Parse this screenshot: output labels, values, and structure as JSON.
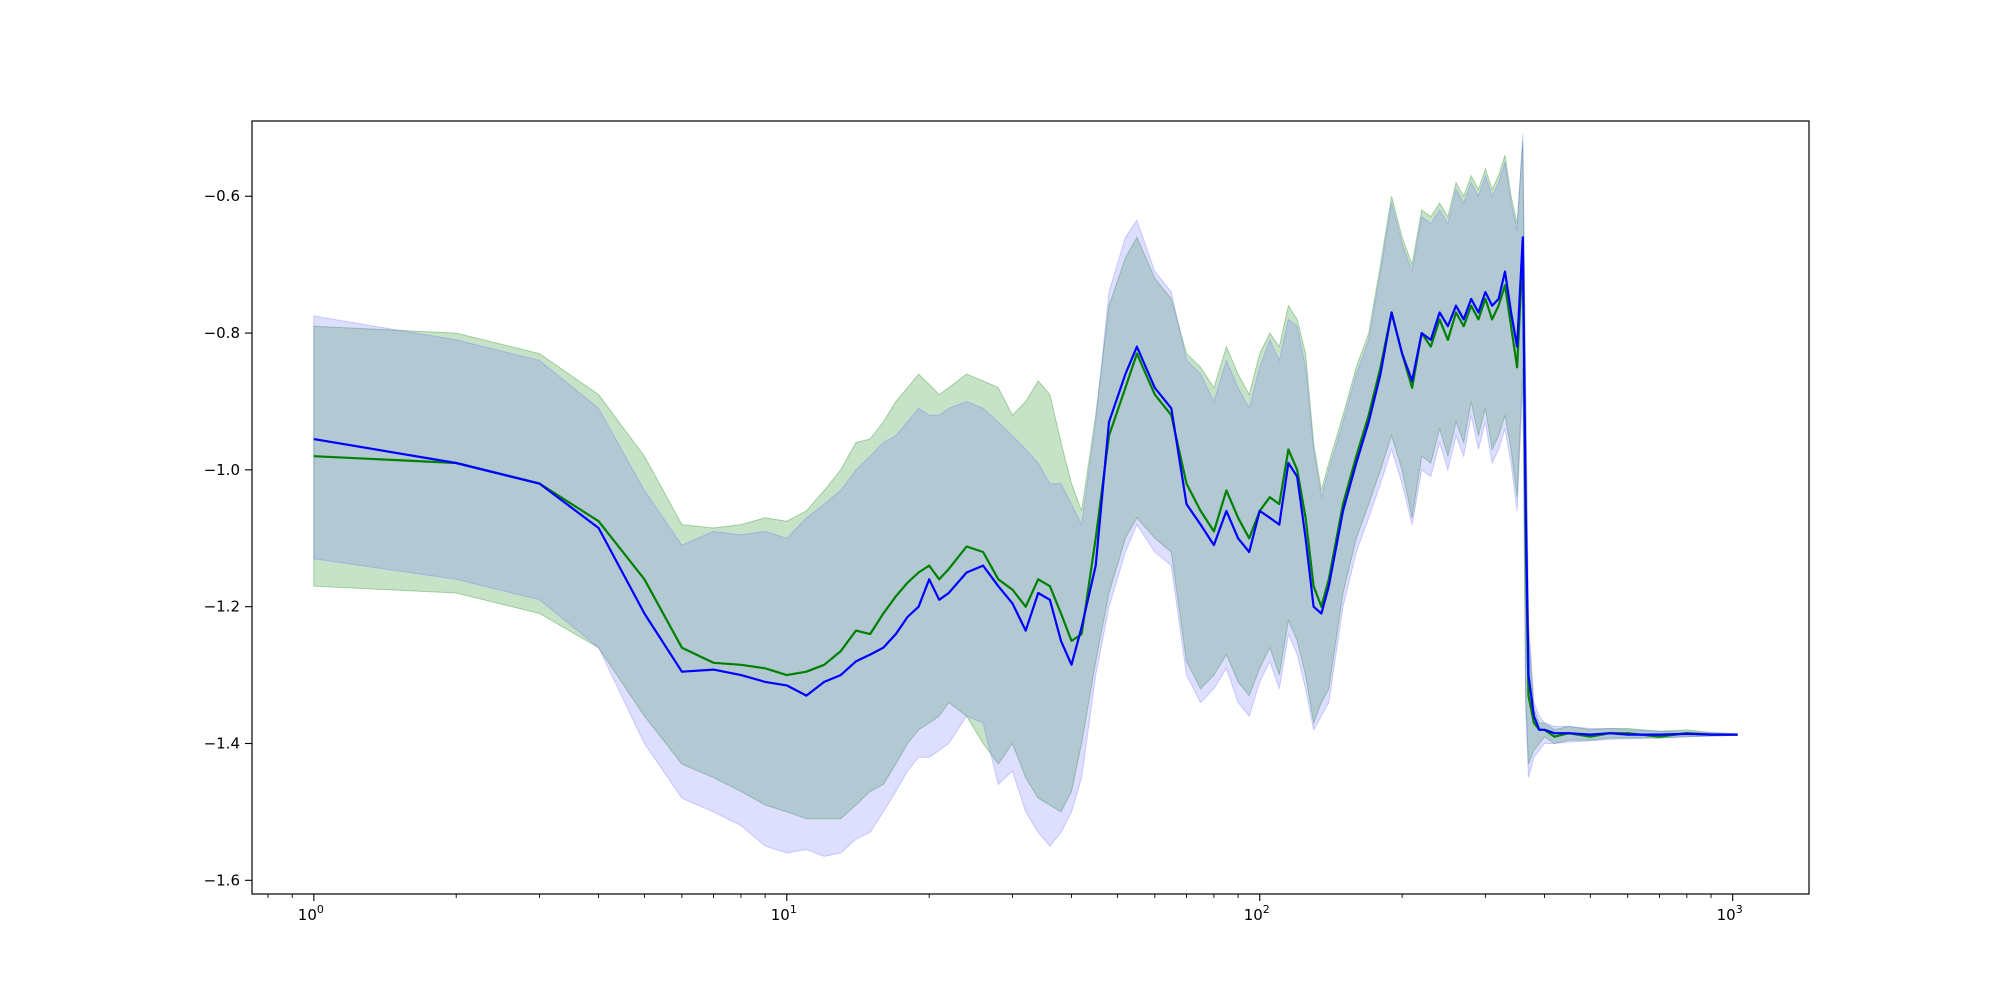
{
  "chart_data": {
    "type": "line",
    "title": "",
    "xlabel": "",
    "ylabel": "",
    "xscale": "log",
    "xlim": [
      0.74,
      1450
    ],
    "ylim": [
      -1.62,
      -0.49
    ],
    "grid": false,
    "legend": "none",
    "x_ticks": [
      {
        "value": 1,
        "base": "10",
        "exp": "0"
      },
      {
        "value": 10,
        "base": "10",
        "exp": "1"
      },
      {
        "value": 100,
        "base": "10",
        "exp": "2"
      },
      {
        "value": 1000,
        "base": "10",
        "exp": "3"
      }
    ],
    "y_ticks": [
      {
        "value": -0.6,
        "label": "−0.6"
      },
      {
        "value": -0.8,
        "label": "−0.8"
      },
      {
        "value": -1.0,
        "label": "−1.0"
      },
      {
        "value": -1.2,
        "label": "−1.2"
      },
      {
        "value": -1.4,
        "label": "−1.4"
      },
      {
        "value": -1.6,
        "label": "−1.6"
      }
    ],
    "series": [
      {
        "color": "#008000",
        "band_color": "#008000",
        "x": [
          1,
          2,
          3,
          4,
          5,
          6,
          7,
          8,
          9,
          10,
          11,
          12,
          13,
          14,
          15,
          16,
          17,
          18,
          19,
          20,
          21,
          22,
          24,
          26,
          28,
          30,
          32,
          34,
          36,
          38,
          40,
          42,
          45,
          48,
          52,
          55,
          60,
          65,
          70,
          75,
          80,
          85,
          90,
          95,
          100,
          105,
          110,
          115,
          120,
          125,
          130,
          135,
          140,
          150,
          160,
          170,
          180,
          190,
          200,
          210,
          220,
          230,
          240,
          250,
          260,
          270,
          280,
          290,
          300,
          310,
          320,
          330,
          340,
          350,
          360,
          365,
          370,
          380,
          390,
          400,
          420,
          450,
          500,
          550,
          600,
          700,
          800,
          900,
          1024
        ],
        "mean": [
          -0.98,
          -0.99,
          -1.02,
          -1.075,
          -1.16,
          -1.26,
          -1.282,
          -1.285,
          -1.29,
          -1.3,
          -1.295,
          -1.285,
          -1.265,
          -1.235,
          -1.24,
          -1.21,
          -1.185,
          -1.165,
          -1.15,
          -1.14,
          -1.16,
          -1.145,
          -1.112,
          -1.12,
          -1.16,
          -1.175,
          -1.2,
          -1.16,
          -1.17,
          -1.21,
          -1.25,
          -1.24,
          -1.1,
          -0.95,
          -0.88,
          -0.83,
          -0.89,
          -0.92,
          -1.02,
          -1.06,
          -1.09,
          -1.03,
          -1.07,
          -1.1,
          -1.06,
          -1.04,
          -1.05,
          -0.97,
          -1.0,
          -1.07,
          -1.17,
          -1.2,
          -1.16,
          -1.05,
          -0.98,
          -0.92,
          -0.85,
          -0.77,
          -0.83,
          -0.88,
          -0.8,
          -0.82,
          -0.78,
          -0.81,
          -0.77,
          -0.79,
          -0.76,
          -0.78,
          -0.75,
          -0.78,
          -0.76,
          -0.73,
          -0.79,
          -0.85,
          -0.68,
          -1.1,
          -1.33,
          -1.37,
          -1.38,
          -1.38,
          -1.39,
          -1.385,
          -1.39,
          -1.385,
          -1.385,
          -1.39,
          -1.385,
          -1.387,
          -1.387
        ],
        "lower": [
          -1.17,
          -1.18,
          -1.21,
          -1.26,
          -1.36,
          -1.43,
          -1.45,
          -1.47,
          -1.49,
          -1.5,
          -1.51,
          -1.51,
          -1.51,
          -1.49,
          -1.47,
          -1.46,
          -1.43,
          -1.4,
          -1.38,
          -1.37,
          -1.36,
          -1.34,
          -1.36,
          -1.4,
          -1.43,
          -1.4,
          -1.45,
          -1.48,
          -1.49,
          -1.5,
          -1.47,
          -1.4,
          -1.28,
          -1.18,
          -1.1,
          -1.07,
          -1.1,
          -1.12,
          -1.28,
          -1.32,
          -1.3,
          -1.27,
          -1.31,
          -1.33,
          -1.29,
          -1.26,
          -1.3,
          -1.22,
          -1.25,
          -1.3,
          -1.37,
          -1.34,
          -1.32,
          -1.18,
          -1.1,
          -1.05,
          -1.0,
          -0.95,
          -1.0,
          -1.07,
          -0.98,
          -0.99,
          -0.94,
          -0.98,
          -0.93,
          -0.96,
          -0.9,
          -0.95,
          -0.91,
          -0.97,
          -0.95,
          -0.92,
          -0.97,
          -1.04,
          -0.85,
          -1.33,
          -1.43,
          -1.41,
          -1.4,
          -1.39,
          -1.4,
          -1.395,
          -1.395,
          -1.392,
          -1.392,
          -1.392,
          -1.39,
          -1.389,
          -1.388
        ],
        "upper": [
          -0.79,
          -0.8,
          -0.83,
          -0.89,
          -0.98,
          -1.08,
          -1.085,
          -1.08,
          -1.07,
          -1.075,
          -1.06,
          -1.03,
          -1.0,
          -0.96,
          -0.955,
          -0.93,
          -0.9,
          -0.88,
          -0.86,
          -0.875,
          -0.89,
          -0.88,
          -0.86,
          -0.87,
          -0.88,
          -0.92,
          -0.9,
          -0.87,
          -0.89,
          -0.96,
          -1.02,
          -1.06,
          -0.92,
          -0.76,
          -0.69,
          -0.66,
          -0.72,
          -0.75,
          -0.83,
          -0.85,
          -0.88,
          -0.82,
          -0.86,
          -0.89,
          -0.83,
          -0.8,
          -0.82,
          -0.76,
          -0.78,
          -0.83,
          -0.96,
          -1.03,
          -0.99,
          -0.92,
          -0.85,
          -0.8,
          -0.7,
          -0.6,
          -0.66,
          -0.7,
          -0.62,
          -0.63,
          -0.61,
          -0.63,
          -0.58,
          -0.6,
          -0.57,
          -0.59,
          -0.56,
          -0.59,
          -0.57,
          -0.54,
          -0.6,
          -0.64,
          -0.52,
          -0.9,
          -1.24,
          -1.35,
          -1.37,
          -1.37,
          -1.38,
          -1.375,
          -1.38,
          -1.378,
          -1.378,
          -1.382,
          -1.38,
          -1.384,
          -1.386
        ]
      },
      {
        "color": "#0000ff",
        "band_color": "#6a6aff",
        "x": [
          1,
          2,
          3,
          4,
          5,
          6,
          7,
          8,
          9,
          10,
          11,
          12,
          13,
          14,
          15,
          16,
          17,
          18,
          19,
          20,
          21,
          22,
          24,
          26,
          28,
          30,
          32,
          34,
          36,
          38,
          40,
          42,
          45,
          48,
          52,
          55,
          60,
          65,
          70,
          75,
          80,
          85,
          90,
          95,
          100,
          105,
          110,
          115,
          120,
          125,
          130,
          135,
          140,
          150,
          160,
          170,
          180,
          190,
          200,
          210,
          220,
          230,
          240,
          250,
          260,
          270,
          280,
          290,
          300,
          310,
          320,
          330,
          340,
          350,
          360,
          365,
          370,
          380,
          390,
          400,
          420,
          450,
          500,
          550,
          600,
          700,
          800,
          900,
          1024
        ],
        "mean": [
          -0.955,
          -0.99,
          -1.02,
          -1.085,
          -1.21,
          -1.295,
          -1.292,
          -1.3,
          -1.31,
          -1.315,
          -1.33,
          -1.31,
          -1.3,
          -1.28,
          -1.27,
          -1.26,
          -1.24,
          -1.215,
          -1.2,
          -1.16,
          -1.19,
          -1.18,
          -1.15,
          -1.14,
          -1.17,
          -1.195,
          -1.235,
          -1.18,
          -1.19,
          -1.25,
          -1.285,
          -1.23,
          -1.14,
          -0.93,
          -0.86,
          -0.82,
          -0.88,
          -0.91,
          -1.05,
          -1.08,
          -1.11,
          -1.06,
          -1.1,
          -1.12,
          -1.06,
          -1.07,
          -1.08,
          -0.99,
          -1.01,
          -1.1,
          -1.2,
          -1.21,
          -1.17,
          -1.06,
          -0.99,
          -0.93,
          -0.86,
          -0.77,
          -0.83,
          -0.87,
          -0.8,
          -0.81,
          -0.77,
          -0.79,
          -0.76,
          -0.78,
          -0.75,
          -0.77,
          -0.74,
          -0.76,
          -0.75,
          -0.71,
          -0.77,
          -0.82,
          -0.66,
          -1.05,
          -1.3,
          -1.36,
          -1.38,
          -1.38,
          -1.385,
          -1.385,
          -1.387,
          -1.385,
          -1.387,
          -1.387,
          -1.386,
          -1.387,
          -1.387
        ],
        "lower": [
          -1.13,
          -1.16,
          -1.19,
          -1.26,
          -1.4,
          -1.48,
          -1.5,
          -1.52,
          -1.55,
          -1.56,
          -1.555,
          -1.565,
          -1.56,
          -1.54,
          -1.53,
          -1.5,
          -1.47,
          -1.44,
          -1.42,
          -1.42,
          -1.41,
          -1.4,
          -1.36,
          -1.37,
          -1.46,
          -1.44,
          -1.5,
          -1.53,
          -1.55,
          -1.53,
          -1.5,
          -1.45,
          -1.3,
          -1.2,
          -1.12,
          -1.08,
          -1.12,
          -1.14,
          -1.3,
          -1.34,
          -1.32,
          -1.29,
          -1.34,
          -1.36,
          -1.31,
          -1.28,
          -1.32,
          -1.24,
          -1.27,
          -1.32,
          -1.38,
          -1.36,
          -1.34,
          -1.2,
          -1.12,
          -1.07,
          -1.02,
          -0.97,
          -1.02,
          -1.08,
          -1.0,
          -1.01,
          -0.96,
          -1.0,
          -0.95,
          -0.98,
          -0.92,
          -0.97,
          -0.93,
          -0.99,
          -0.97,
          -0.94,
          -0.99,
          -1.06,
          -0.87,
          -1.35,
          -1.45,
          -1.42,
          -1.41,
          -1.4,
          -1.4,
          -1.398,
          -1.396,
          -1.394,
          -1.393,
          -1.392,
          -1.39,
          -1.389,
          -1.388
        ],
        "upper": [
          -0.775,
          -0.81,
          -0.84,
          -0.91,
          -1.03,
          -1.11,
          -1.09,
          -1.095,
          -1.09,
          -1.1,
          -1.07,
          -1.05,
          -1.03,
          -1.0,
          -0.98,
          -0.96,
          -0.95,
          -0.93,
          -0.91,
          -0.92,
          -0.92,
          -0.91,
          -0.9,
          -0.91,
          -0.93,
          -0.95,
          -0.97,
          -0.99,
          -1.02,
          -1.02,
          -1.05,
          -1.08,
          -0.93,
          -0.74,
          -0.66,
          -0.635,
          -0.71,
          -0.74,
          -0.84,
          -0.86,
          -0.9,
          -0.84,
          -0.88,
          -0.91,
          -0.85,
          -0.81,
          -0.84,
          -0.78,
          -0.79,
          -0.85,
          -0.97,
          -1.04,
          -1.0,
          -0.93,
          -0.86,
          -0.81,
          -0.71,
          -0.61,
          -0.67,
          -0.71,
          -0.63,
          -0.64,
          -0.62,
          -0.64,
          -0.59,
          -0.61,
          -0.58,
          -0.6,
          -0.57,
          -0.6,
          -0.58,
          -0.55,
          -0.61,
          -0.65,
          -0.51,
          -0.88,
          -1.22,
          -1.34,
          -1.36,
          -1.37,
          -1.375,
          -1.375,
          -1.378,
          -1.378,
          -1.38,
          -1.382,
          -1.383,
          -1.384,
          -1.386
        ]
      }
    ]
  }
}
